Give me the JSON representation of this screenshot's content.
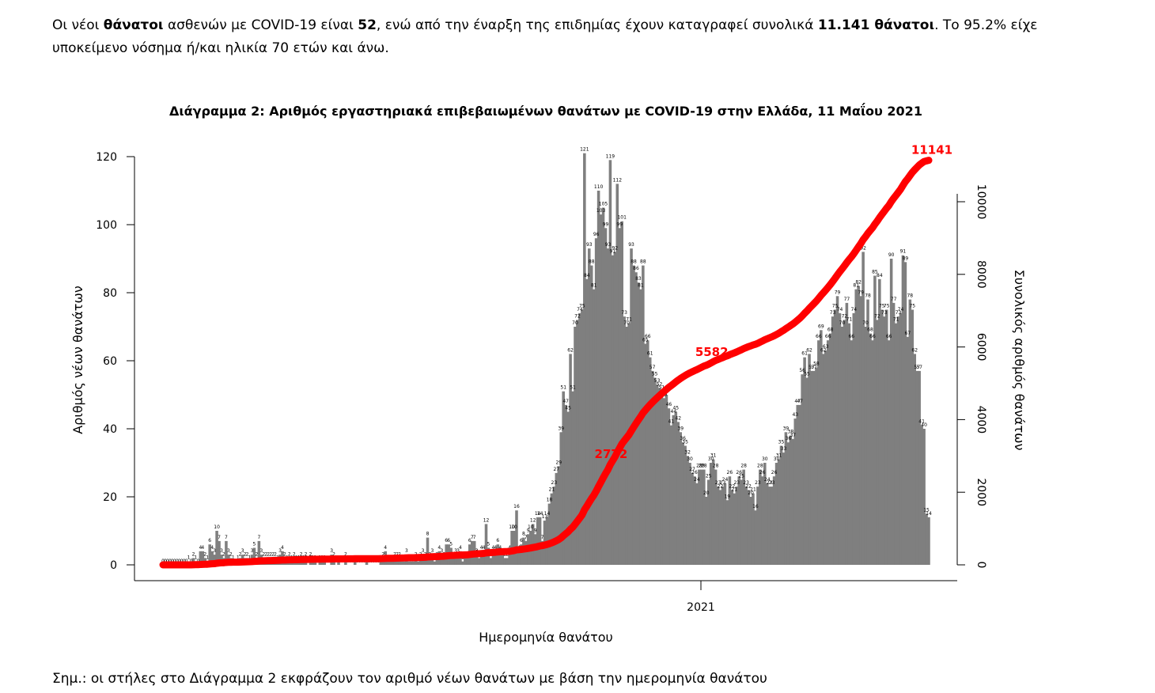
{
  "intro": {
    "part1": "Οι νέοι ",
    "bold1": "θάνατοι",
    "part2": " ασθενών με COVID-19 είναι ",
    "bold2": "52",
    "part3": ", ενώ από την έναρξη της επιδημίας έχουν καταγραφεί συνολικά ",
    "bold3": "11.141 θάνατοι",
    "part4": ".  Το 95.2% είχε υποκείμενο νόσημα ή/και ηλικία 70 ετών και άνω."
  },
  "note": "Σημ.: οι στήλες στο Διάγραμμα 2 εκφράζουν τον αριθμό νέων θανάτων με βάση την ημερομηνία θανάτου",
  "chart_data": {
    "type": "bar",
    "title": "Διάγραμμα 2: Αριθμός εργαστηριακά επιβεβαιωμένων θανάτων με COVID-19 στην Ελλάδα, 11 Μαΐου 2021",
    "xlabel": "Ημερομηνία θανάτου",
    "ylabel": "Αριθμός νέων θανάτων",
    "y2label": "Συνολικός αριθμός θανάτων",
    "x_tick": "2021",
    "ylim": [
      0,
      120
    ],
    "y_ticks": [
      0,
      20,
      40,
      60,
      80,
      100,
      120
    ],
    "y2lim": [
      0,
      10000
    ],
    "y2_ticks": [
      0,
      2000,
      4000,
      6000,
      8000,
      10000
    ],
    "bar_color": "#7f7f7f",
    "line_color": "#ff0000",
    "series": [
      {
        "name": "Νέοι θάνατοι",
        "values": [
          0,
          0,
          0,
          0,
          0,
          0,
          0,
          0,
          0,
          0,
          0,
          1,
          0,
          2,
          1,
          0,
          4,
          4,
          2,
          1,
          6,
          4,
          3,
          10,
          7,
          3,
          2,
          7,
          3,
          2,
          1,
          0,
          1,
          2,
          3,
          2,
          2,
          1,
          3,
          5,
          2,
          7,
          3,
          2,
          2,
          2,
          2,
          2,
          2,
          1,
          3,
          4,
          2,
          1,
          2,
          1,
          2,
          1,
          1,
          2,
          1,
          2,
          0,
          2,
          1,
          1,
          0,
          1,
          1,
          1,
          0,
          0,
          3,
          2,
          0,
          1,
          0,
          0,
          2,
          0,
          0,
          0,
          1,
          0,
          0,
          0,
          0,
          1,
          0,
          0,
          0,
          0,
          0,
          1,
          2,
          4,
          1,
          1,
          1,
          2,
          2,
          2,
          1,
          1,
          3,
          1,
          1,
          1,
          2,
          1,
          2,
          3,
          2,
          8,
          2,
          3,
          1,
          2,
          4,
          3,
          2,
          6,
          6,
          5,
          2,
          3,
          3,
          4,
          1,
          2,
          2,
          6,
          7,
          7,
          3,
          2,
          4,
          4,
          12,
          5,
          2,
          4,
          4,
          6,
          4,
          3,
          2,
          2,
          4,
          10,
          10,
          16,
          4,
          6,
          8,
          7,
          9,
          10,
          12,
          9,
          14,
          14,
          7,
          13,
          14,
          18,
          21,
          23,
          27,
          29,
          39,
          51,
          47,
          45,
          62,
          51,
          70,
          72,
          74,
          75,
          121,
          84,
          93,
          88,
          81,
          96,
          110,
          103,
          105,
          99,
          93,
          119,
          91,
          92,
          112,
          99,
          101,
          73,
          70,
          71,
          93,
          88,
          86,
          83,
          81,
          88,
          65,
          66,
          61,
          57,
          55,
          53,
          52,
          51,
          49,
          50,
          46,
          41,
          44,
          45,
          42,
          39,
          36,
          35,
          32,
          30,
          27,
          26,
          24,
          28,
          28,
          28,
          20,
          25,
          30,
          31,
          28,
          23,
          22,
          23,
          24,
          19,
          26,
          22,
          21,
          23,
          26,
          25,
          28,
          23,
          22,
          20,
          21,
          16,
          23,
          28,
          26,
          30,
          24,
          23,
          23,
          26,
          30,
          31,
          35,
          33,
          39,
          36,
          38,
          37,
          43,
          47,
          47,
          56,
          61,
          55,
          62,
          57,
          57,
          58,
          66,
          69,
          62,
          63,
          66,
          68,
          73,
          75,
          79,
          74,
          70,
          72,
          77,
          71,
          66,
          74,
          81,
          82,
          79,
          92,
          70,
          78,
          68,
          66,
          85,
          72,
          84,
          75,
          73,
          75,
          66,
          90,
          77,
          71,
          73,
          74,
          91,
          89,
          67,
          78,
          75,
          62,
          57,
          57,
          41,
          40,
          15,
          14
        ]
      }
    ],
    "cumulative": {
      "name": "Συνολικός αριθμός θανάτων",
      "labels": [
        2772,
        5582,
        11141
      ]
    }
  }
}
